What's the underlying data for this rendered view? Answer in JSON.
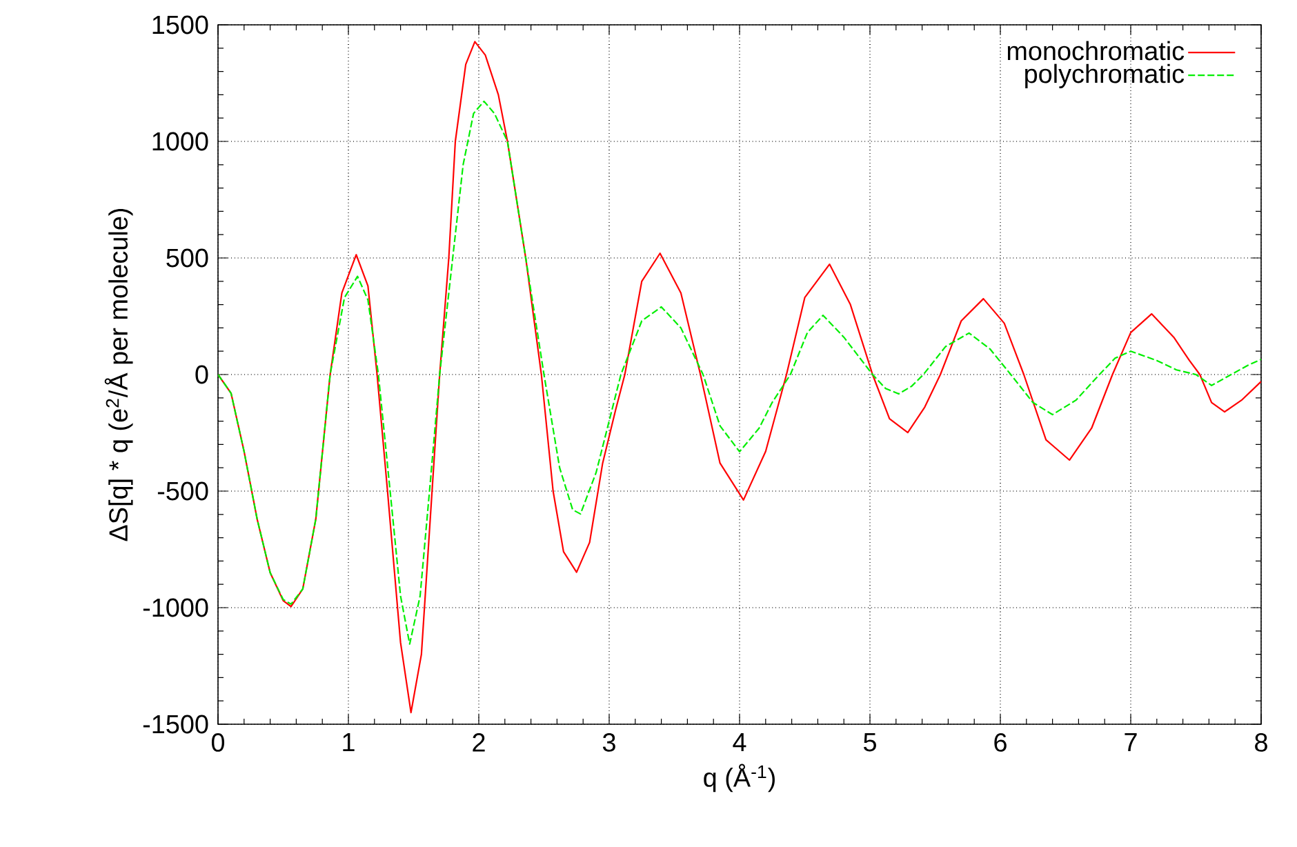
{
  "chart_data": {
    "type": "line",
    "xlabel": "q (Å$^{-1}$)",
    "ylabel": "ΔS[q] * q (e$^{2}$/Å per molecule)",
    "xlim": [
      0,
      8
    ],
    "ylim": [
      -1500,
      1500
    ],
    "xticks": [
      0,
      1,
      2,
      3,
      4,
      5,
      6,
      7,
      8
    ],
    "yticks": [
      -1500,
      -1000,
      -500,
      0,
      500,
      1000,
      1500
    ],
    "grid": true,
    "legend": "top right",
    "series": [
      {
        "name": "monochromatic",
        "color": "#ff0000",
        "line_style": "solid",
        "x": [
          0,
          0.1,
          0.2,
          0.3,
          0.4,
          0.5,
          0.56,
          0.65,
          0.75,
          0.86,
          0.95,
          1.06,
          1.15,
          1.22,
          1.3,
          1.4,
          1.48,
          1.56,
          1.63,
          1.7,
          1.77,
          1.82,
          1.9,
          1.97,
          2.05,
          2.15,
          2.22,
          2.36,
          2.48,
          2.57,
          2.65,
          2.75,
          2.85,
          2.95,
          3.05,
          3.12,
          3.25,
          3.39,
          3.55,
          3.7,
          3.85,
          4.03,
          4.2,
          4.36,
          4.5,
          4.69,
          4.85,
          5.02,
          5.15,
          5.29,
          5.42,
          5.54,
          5.7,
          5.87,
          6.03,
          6.18,
          6.35,
          6.53,
          6.7,
          6.86,
          7.0,
          7.16,
          7.33,
          7.45,
          7.53,
          7.62,
          7.72,
          7.85,
          8.0
        ],
        "values": [
          0,
          -80,
          -330,
          -620,
          -850,
          -970,
          -995,
          -920,
          -620,
          0,
          350,
          514,
          380,
          0,
          -500,
          -1150,
          -1450,
          -1200,
          -600,
          0,
          500,
          1000,
          1330,
          1428,
          1370,
          1200,
          1000,
          500,
          0,
          -500,
          -760,
          -848,
          -720,
          -380,
          -150,
          0,
          400,
          520,
          350,
          0,
          -380,
          -538,
          -330,
          0,
          330,
          473,
          300,
          0,
          -190,
          -249,
          -140,
          0,
          230,
          325,
          220,
          0,
          -280,
          -367,
          -230,
          0,
          180,
          260,
          160,
          60,
          0,
          -120,
          -160,
          -110,
          -30
        ]
      },
      {
        "name": "polychromatic",
        "color": "#00ee00",
        "line_style": "dashed",
        "x": [
          0,
          0.1,
          0.2,
          0.3,
          0.4,
          0.5,
          0.56,
          0.65,
          0.75,
          0.86,
          0.97,
          1.07,
          1.15,
          1.23,
          1.32,
          1.4,
          1.47,
          1.55,
          1.63,
          1.7,
          1.78,
          1.88,
          1.96,
          2.04,
          2.12,
          2.22,
          2.36,
          2.5,
          2.62,
          2.72,
          2.78,
          2.9,
          3.09,
          3.25,
          3.4,
          3.55,
          3.72,
          3.85,
          4.0,
          4.15,
          4.25,
          4.39,
          4.52,
          4.64,
          4.8,
          5.02,
          5.12,
          5.22,
          5.32,
          5.41,
          5.58,
          5.76,
          5.92,
          6.08,
          6.25,
          6.4,
          6.58,
          6.76,
          6.88,
          7.0,
          7.2,
          7.35,
          7.5,
          7.62,
          7.77,
          7.9,
          8.0
        ],
        "values": [
          0,
          -80,
          -330,
          -620,
          -850,
          -965,
          -985,
          -920,
          -620,
          0,
          330,
          421,
          320,
          0,
          -500,
          -950,
          -1156,
          -950,
          -450,
          0,
          400,
          900,
          1120,
          1172,
          1120,
          1000,
          500,
          0,
          -400,
          -580,
          -598,
          -420,
          0,
          230,
          290,
          200,
          0,
          -220,
          -331,
          -230,
          -120,
          0,
          180,
          254,
          160,
          0,
          -60,
          -83,
          -50,
          0,
          120,
          178,
          110,
          0,
          -120,
          -172,
          -110,
          0,
          70,
          100,
          60,
          20,
          0,
          -47,
          0,
          40,
          65
        ]
      }
    ]
  }
}
